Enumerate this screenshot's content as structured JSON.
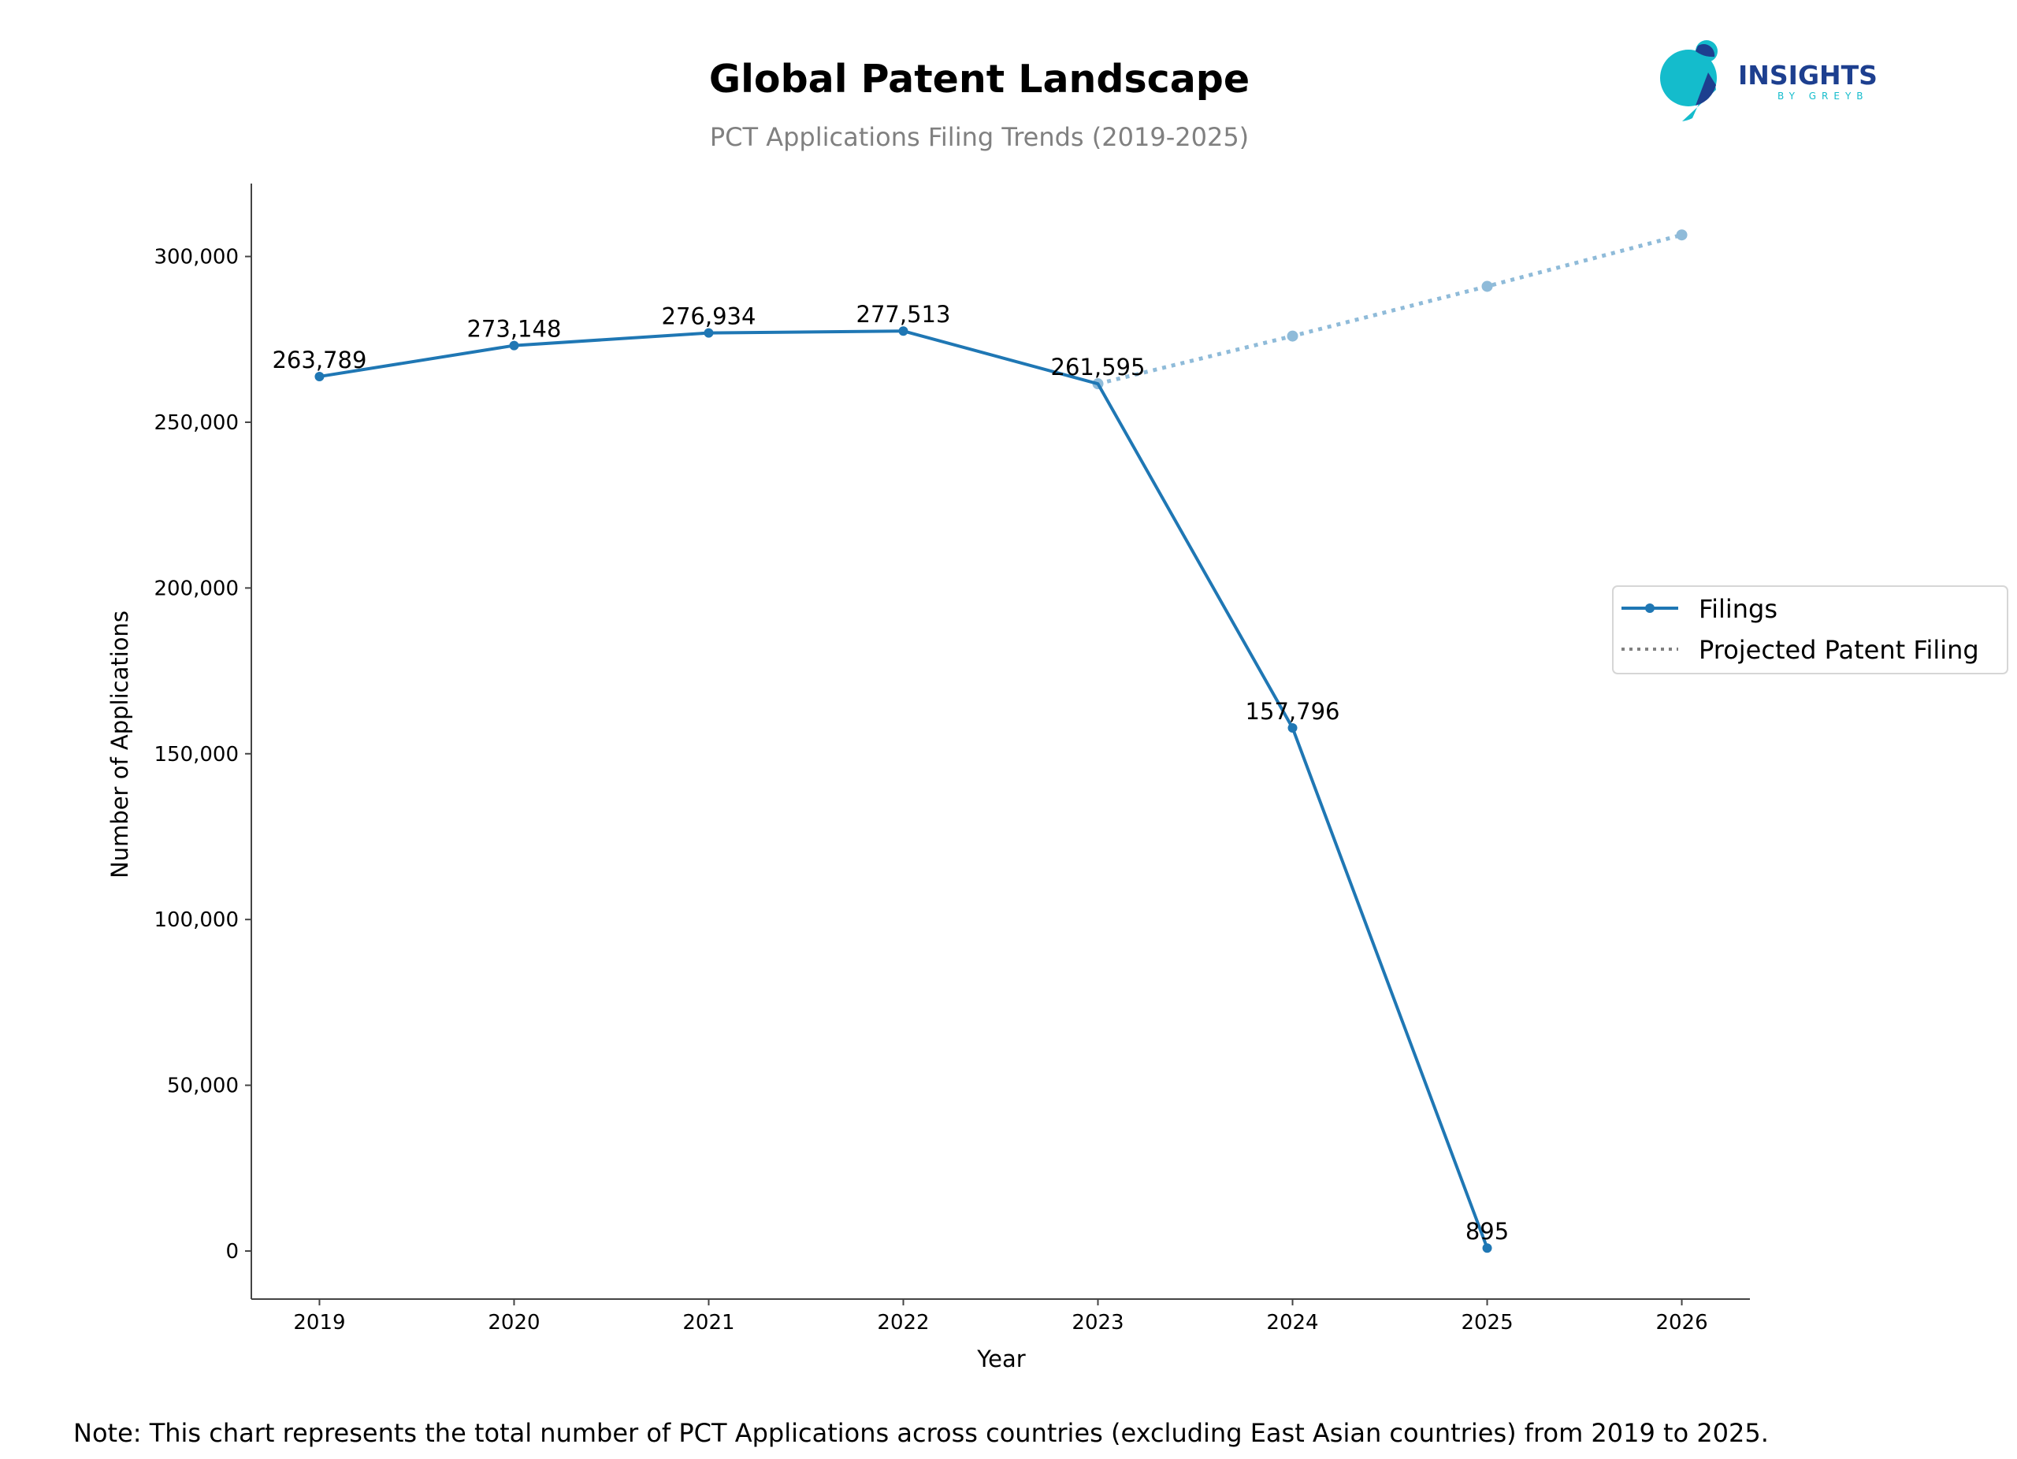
{
  "logo": {
    "name": "INSIGHTS",
    "tagline": "BY GREYB",
    "colors": {
      "teal": "#14bccc",
      "navy": "#1d3f8f"
    }
  },
  "chart_data": {
    "type": "line",
    "title": "Global Patent Landscape",
    "subtitle": "PCT Applications Filing Trends (2019-2025)",
    "xlabel": "Year",
    "ylabel": "Number of Applications",
    "xlim": [
      2018.65,
      2026.35
    ],
    "ylim": [
      -14500,
      322000
    ],
    "xticks": [
      2019,
      2020,
      2021,
      2022,
      2023,
      2024,
      2025,
      2026
    ],
    "xtick_labels": [
      "2019",
      "2020",
      "2021",
      "2022",
      "2023",
      "2024",
      "2025",
      "2026"
    ],
    "yticks": [
      0,
      50000,
      100000,
      150000,
      200000,
      250000,
      300000
    ],
    "ytick_labels": [
      "0",
      "50,000",
      "100,000",
      "150,000",
      "200,000",
      "250,000",
      "300,000"
    ],
    "grid": false,
    "legend_position": "center-right",
    "series": [
      {
        "name": "Filings",
        "style": "solid",
        "marker": "circle",
        "color": "#1f77b4",
        "x": [
          2019,
          2020,
          2021,
          2022,
          2023,
          2024,
          2025
        ],
        "y": [
          263789,
          273148,
          276934,
          277513,
          261595,
          157796,
          895
        ],
        "labels": [
          "263,789",
          "273,148",
          "276,934",
          "277,513",
          "261,595",
          "157,796",
          "895"
        ]
      },
      {
        "name": "Projected Patent Filing",
        "style": "dotted",
        "marker": "circle",
        "color": "#8fbbd9",
        "legend_color": "#808080",
        "x": [
          2023,
          2024,
          2025,
          2026
        ],
        "y": [
          261595,
          276000,
          291000,
          306500
        ]
      }
    ]
  },
  "note": "Note: This chart represents the total number of PCT Applications across countries (excluding East Asian countries) from 2019 to 2025."
}
